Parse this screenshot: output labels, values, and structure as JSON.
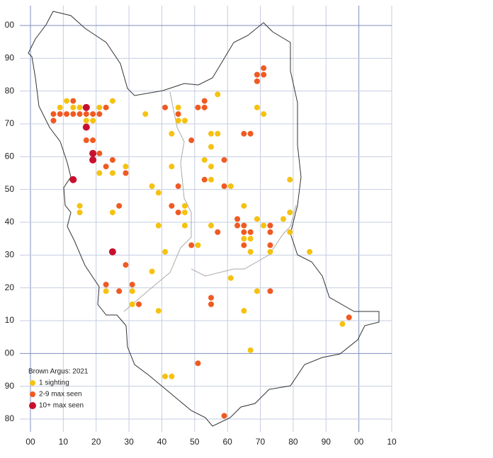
{
  "chart_data": {
    "type": "scatter",
    "title": "Brown Argus:  2021",
    "xlim": [
      0,
      110
    ],
    "ylim": [
      80,
      200
    ],
    "xticks": [
      {
        "value": 0,
        "label": "00"
      },
      10,
      20,
      30,
      40,
      50,
      60,
      70,
      80,
      90,
      {
        "value": 100,
        "label": "00"
      },
      {
        "value": 110,
        "label": "10"
      }
    ],
    "yticks": [
      {
        "value": 200,
        "label": "00"
      },
      {
        "value": 190,
        "label": "90"
      },
      {
        "value": 180,
        "label": "80"
      },
      {
        "value": 170,
        "label": "70"
      },
      {
        "value": 160,
        "label": "60"
      },
      {
        "value": 150,
        "label": "50"
      },
      {
        "value": 140,
        "label": "40"
      },
      {
        "value": 130,
        "label": "30"
      },
      {
        "value": 120,
        "label": "20"
      },
      {
        "value": 110,
        "label": "10"
      },
      {
        "value": 100,
        "label": "00"
      },
      90,
      80
    ],
    "grid": true,
    "legend": "lower left",
    "series": [
      {
        "name": "1 sighting",
        "color": "#f5c211",
        "values": [
          [
            9,
            175
          ],
          [
            11,
            177
          ],
          [
            13,
            175
          ],
          [
            15,
            175
          ],
          [
            17,
            171
          ],
          [
            19,
            171
          ],
          [
            25,
            177
          ],
          [
            21,
            175
          ],
          [
            35,
            173
          ],
          [
            45,
            175
          ],
          [
            43,
            167
          ],
          [
            45,
            171
          ],
          [
            47,
            171
          ],
          [
            57,
            179
          ],
          [
            55,
            167
          ],
          [
            57,
            167
          ],
          [
            55,
            163
          ],
          [
            53,
            159
          ],
          [
            55,
            157
          ],
          [
            55,
            153
          ],
          [
            61,
            151
          ],
          [
            69,
            175
          ],
          [
            71,
            173
          ],
          [
            29,
            157
          ],
          [
            21,
            155
          ],
          [
            25,
            155
          ],
          [
            37,
            151
          ],
          [
            39,
            149
          ],
          [
            43,
            157
          ],
          [
            47,
            145
          ],
          [
            47,
            143
          ],
          [
            47,
            139
          ],
          [
            39,
            139
          ],
          [
            15,
            145
          ],
          [
            15,
            143
          ],
          [
            25,
            143
          ],
          [
            41,
            131
          ],
          [
            51,
            133
          ],
          [
            55,
            139
          ],
          [
            65,
            145
          ],
          [
            69,
            141
          ],
          [
            71,
            139
          ],
          [
            65,
            135
          ],
          [
            67,
            135
          ],
          [
            67,
            131
          ],
          [
            73,
            131
          ],
          [
            77,
            141
          ],
          [
            79,
            143
          ],
          [
            79,
            153
          ],
          [
            79,
            137
          ],
          [
            85,
            131
          ],
          [
            37,
            125
          ],
          [
            23,
            119
          ],
          [
            31,
            119
          ],
          [
            31,
            115
          ],
          [
            39,
            113
          ],
          [
            61,
            123
          ],
          [
            69,
            119
          ],
          [
            65,
            113
          ],
          [
            67,
            101
          ],
          [
            95,
            109
          ],
          [
            41,
            93
          ],
          [
            43,
            93
          ]
        ]
      },
      {
        "name": "2-9 max seen",
        "color": "#f05a22",
        "values": [
          [
            7,
            173
          ],
          [
            7,
            171
          ],
          [
            9,
            173
          ],
          [
            11,
            173
          ],
          [
            13,
            177
          ],
          [
            13,
            173
          ],
          [
            15,
            173
          ],
          [
            17,
            173
          ],
          [
            19,
            173
          ],
          [
            21,
            173
          ],
          [
            23,
            175
          ],
          [
            17,
            165
          ],
          [
            19,
            165
          ],
          [
            21,
            161
          ],
          [
            25,
            159
          ],
          [
            23,
            157
          ],
          [
            29,
            155
          ],
          [
            27,
            145
          ],
          [
            41,
            175
          ],
          [
            45,
            173
          ],
          [
            49,
            165
          ],
          [
            53,
            177
          ],
          [
            51,
            175
          ],
          [
            53,
            175
          ],
          [
            59,
            159
          ],
          [
            53,
            153
          ],
          [
            59,
            151
          ],
          [
            45,
            151
          ],
          [
            43,
            145
          ],
          [
            45,
            143
          ],
          [
            57,
            137
          ],
          [
            49,
            133
          ],
          [
            63,
            141
          ],
          [
            63,
            139
          ],
          [
            65,
            139
          ],
          [
            65,
            137
          ],
          [
            67,
            137
          ],
          [
            65,
            133
          ],
          [
            73,
            139
          ],
          [
            73,
            137
          ],
          [
            73,
            133
          ],
          [
            65,
            167
          ],
          [
            67,
            167
          ],
          [
            71,
            187
          ],
          [
            69,
            185
          ],
          [
            71,
            185
          ],
          [
            69,
            183
          ],
          [
            29,
            127
          ],
          [
            23,
            121
          ],
          [
            31,
            121
          ],
          [
            27,
            119
          ],
          [
            33,
            115
          ],
          [
            55,
            117
          ],
          [
            55,
            115
          ],
          [
            73,
            119
          ],
          [
            97,
            111
          ],
          [
            51,
            97
          ],
          [
            59,
            81
          ]
        ]
      },
      {
        "name": "10+ max seen",
        "color": "#c8102e",
        "values": [
          [
            17,
            175
          ],
          [
            17,
            169
          ],
          [
            19,
            161
          ],
          [
            19,
            159
          ],
          [
            13,
            153
          ],
          [
            25,
            131
          ]
        ]
      }
    ]
  }
}
